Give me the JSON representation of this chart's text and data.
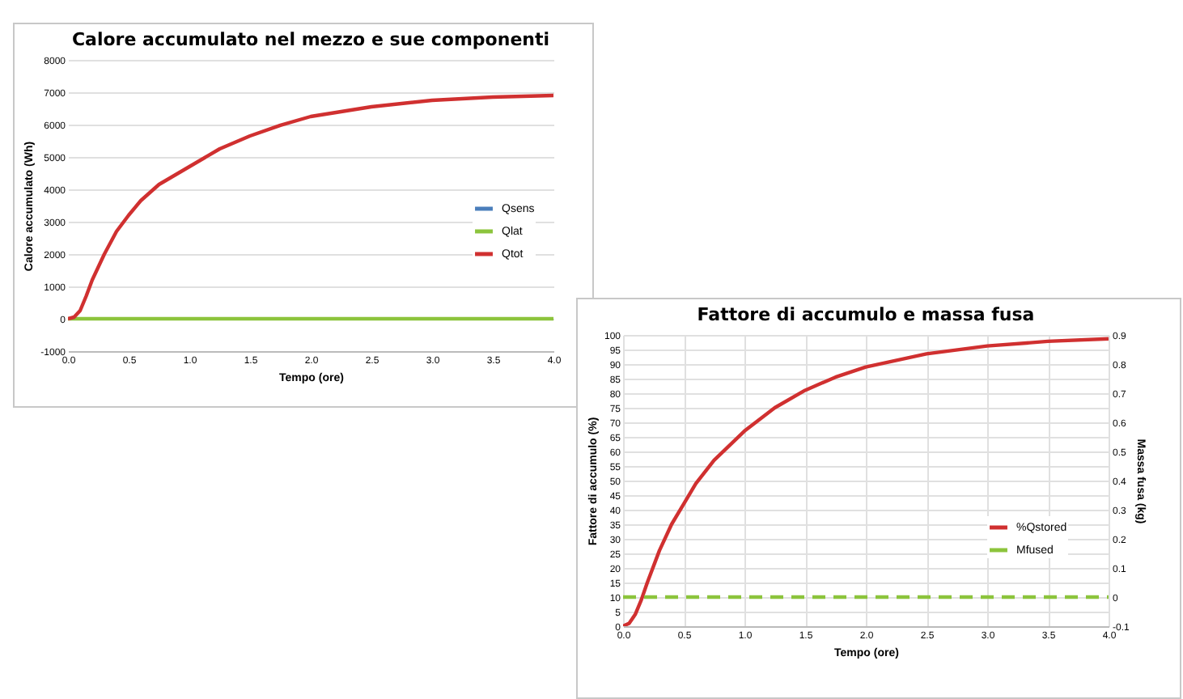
{
  "chart_data": [
    {
      "type": "line",
      "title": "Calore accumulato nel mezzo e sue componenti",
      "xlabel": "Tempo (ore)",
      "ylabel": "Calore accumulato (Wh)",
      "xlim": [
        0,
        4
      ],
      "xticks": [
        {
          "value": 0,
          "label": "0.0"
        },
        0.5,
        {
          "value": 1,
          "label": "1.0"
        },
        1.5,
        {
          "value": 2,
          "label": "2.0"
        },
        2.5,
        {
          "value": 3,
          "label": "3.0"
        },
        3.5,
        {
          "value": 4,
          "label": "4.0"
        }
      ],
      "ylim": [
        -1000,
        8000
      ],
      "yticks": [
        -1000,
        0,
        1000,
        2000,
        3000,
        4000,
        5000,
        6000,
        7000,
        8000
      ],
      "grid": "y",
      "legend": "right",
      "x": [
        0,
        0.05,
        0.1,
        0.15,
        0.2,
        0.3,
        0.4,
        0.5,
        0.6,
        0.75,
        1.0,
        1.25,
        1.5,
        1.75,
        2.0,
        2.5,
        3.0,
        3.5,
        4.0
      ],
      "series": [
        {
          "name": "Qsens",
          "color": "#4a7ebb",
          "values": [
            null,
            null,
            null,
            null,
            null,
            null,
            null,
            null,
            null,
            null,
            null,
            null,
            null,
            null,
            null,
            null,
            null,
            null,
            null
          ]
        },
        {
          "name": "Qlat",
          "color": "#8cc43c",
          "values": [
            0,
            0,
            0,
            0,
            0,
            0,
            0,
            0,
            0,
            0,
            0,
            0,
            0,
            0,
            0,
            0,
            0,
            0,
            0
          ]
        },
        {
          "name": "Qtot",
          "color": "#d03030",
          "values": [
            0,
            50,
            250,
            700,
            1200,
            2000,
            2700,
            3200,
            3650,
            4150,
            4700,
            5250,
            5650,
            5980,
            6250,
            6550,
            6750,
            6850,
            6900
          ]
        }
      ]
    },
    {
      "type": "line",
      "title": "Fattore di accumulo e massa fusa",
      "xlabel": "Tempo (ore)",
      "ylabel": "Fattore di accumulo (%)",
      "y2label": "Massa fusa (kg)",
      "xlim": [
        0,
        4
      ],
      "xticks": [
        {
          "value": 0,
          "label": "0.0"
        },
        0.5,
        {
          "value": 1,
          "label": "1.0"
        },
        1.5,
        {
          "value": 2,
          "label": "2.0"
        },
        2.5,
        {
          "value": 3,
          "label": "3.0"
        },
        3.5,
        {
          "value": 4,
          "label": "4.0"
        }
      ],
      "ylim": [
        0,
        100
      ],
      "yticks": [
        0,
        5,
        10,
        15,
        20,
        25,
        30,
        35,
        40,
        45,
        50,
        55,
        60,
        65,
        70,
        75,
        80,
        85,
        90,
        95,
        100
      ],
      "y2lim": [
        -0.1,
        0.9
      ],
      "y2ticks": [
        -0.1,
        0,
        0.1,
        0.2,
        0.3,
        0.4,
        0.5,
        0.6,
        0.7,
        0.8,
        0.9
      ],
      "grid": true,
      "legend": "right",
      "x": [
        0,
        0.05,
        0.1,
        0.15,
        0.2,
        0.3,
        0.4,
        0.5,
        0.6,
        0.75,
        1.0,
        1.25,
        1.5,
        1.75,
        2.0,
        2.5,
        3.0,
        3.5,
        4.0
      ],
      "series": [
        {
          "name": "%Qstored",
          "color": "#d03030",
          "values": [
            0,
            1,
            4,
            9,
            15,
            26,
            35,
            42,
            49,
            57,
            67,
            75,
            81,
            85.5,
            89,
            93.5,
            96.2,
            97.8,
            98.7
          ]
        },
        {
          "name": "Mfused",
          "color": "#8cc43c",
          "axis": "y2",
          "line_style": "dashed",
          "x": [
            0,
            4
          ],
          "values": [
            0,
            0
          ]
        }
      ]
    }
  ]
}
